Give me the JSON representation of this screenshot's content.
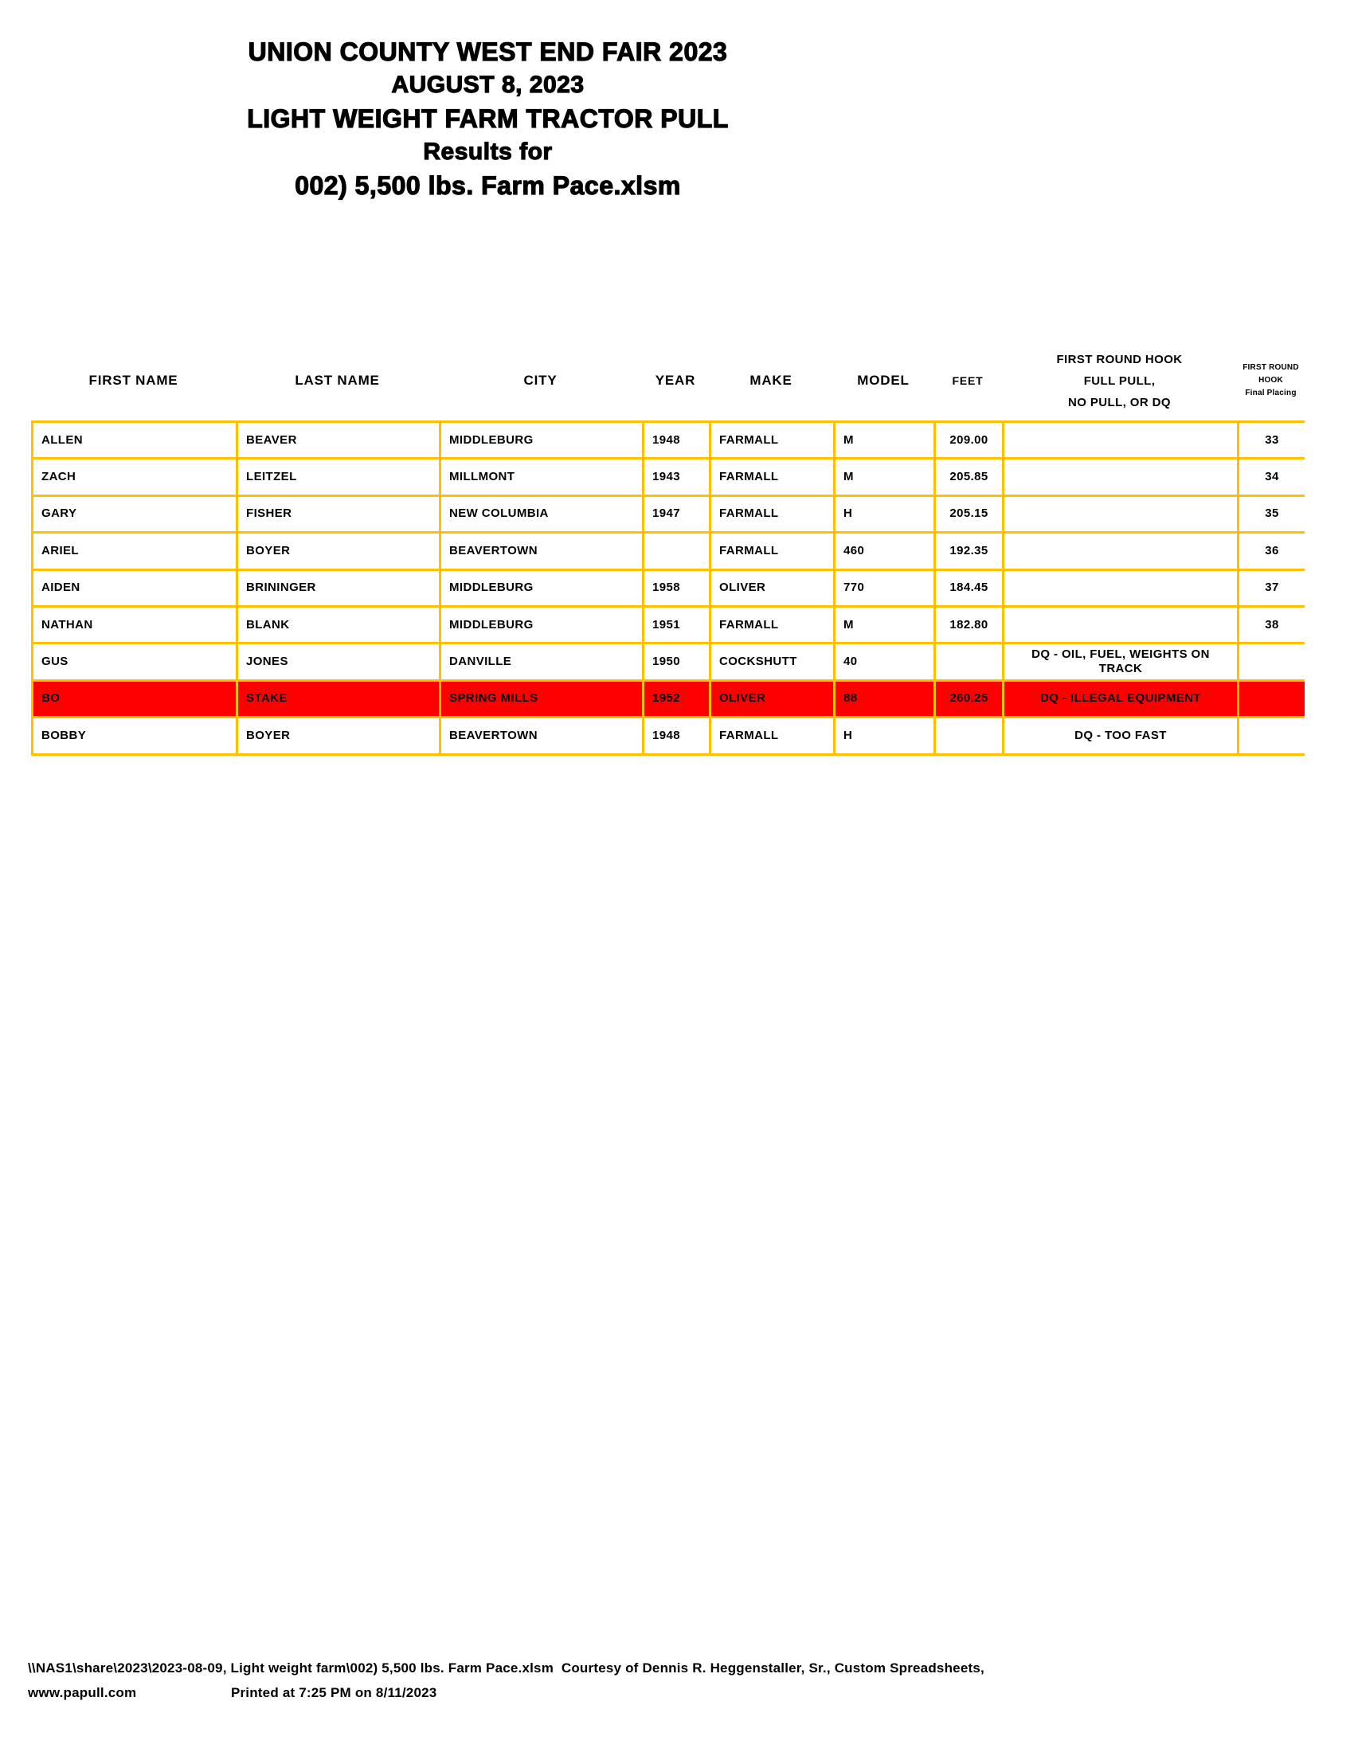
{
  "title": {
    "line1": "UNION COUNTY WEST END FAIR 2023",
    "line2": "AUGUST 8, 2023",
    "line3": "LIGHT WEIGHT FARM TRACTOR PULL",
    "line4": "Results for",
    "line5": "002) 5,500 lbs. Farm Pace.xlsm"
  },
  "table": {
    "headers": {
      "first_name": "FIRST NAME",
      "last_name": "LAST NAME",
      "city": "CITY",
      "year": "YEAR",
      "make": "MAKE",
      "model": "MODEL",
      "feet": "FEET",
      "hook_line1": "FIRST ROUND HOOK",
      "hook_line2": "FULL PULL,",
      "hook_line3": "NO PULL, OR DQ",
      "placing_line1": "FIRST ROUND",
      "placing_line2": "HOOK",
      "placing_line3": "Final Placing"
    },
    "rows": [
      {
        "first_name": "ALLEN",
        "last_name": "BEAVER",
        "city": "MIDDLEBURG",
        "year": "1948",
        "make": "FARMALL",
        "model": "M",
        "feet": "209.00",
        "hook": "",
        "placing": "33",
        "highlight": false
      },
      {
        "first_name": "ZACH",
        "last_name": "LEITZEL",
        "city": "MILLMONT",
        "year": "1943",
        "make": "FARMALL",
        "model": "M",
        "feet": "205.85",
        "hook": "",
        "placing": "34",
        "highlight": false
      },
      {
        "first_name": "GARY",
        "last_name": "FISHER",
        "city": "NEW COLUMBIA",
        "year": "1947",
        "make": "FARMALL",
        "model": "H",
        "feet": "205.15",
        "hook": "",
        "placing": "35",
        "highlight": false
      },
      {
        "first_name": "ARIEL",
        "last_name": "BOYER",
        "city": "BEAVERTOWN",
        "year": "",
        "make": "FARMALL",
        "model": "460",
        "feet": "192.35",
        "hook": "",
        "placing": "36",
        "highlight": false
      },
      {
        "first_name": "AIDEN",
        "last_name": "BRININGER",
        "city": "MIDDLEBURG",
        "year": "1958",
        "make": "OLIVER",
        "model": "770",
        "feet": "184.45",
        "hook": "",
        "placing": "37",
        "highlight": false
      },
      {
        "first_name": "NATHAN",
        "last_name": "BLANK",
        "city": "MIDDLEBURG",
        "year": "1951",
        "make": "FARMALL",
        "model": "M",
        "feet": "182.80",
        "hook": "",
        "placing": "38",
        "highlight": false
      },
      {
        "first_name": "GUS",
        "last_name": "JONES",
        "city": "DANVILLE",
        "year": "1950",
        "make": "COCKSHUTT",
        "model": "40",
        "feet": "",
        "hook": "DQ - OIL, FUEL, WEIGHTS ON TRACK",
        "placing": "",
        "highlight": false
      },
      {
        "first_name": "BO",
        "last_name": "STAKE",
        "city": "SPRING MILLS",
        "year": "1952",
        "make": "OLIVER",
        "model": "88",
        "feet": "260.25",
        "hook": "DQ - ILLEGAL EQUIPMENT",
        "placing": "",
        "highlight": true
      },
      {
        "first_name": "BOBBY",
        "last_name": "BOYER",
        "city": "BEAVERTOWN",
        "year": "1948",
        "make": "FARMALL",
        "model": "H",
        "feet": "",
        "hook": "DQ - TOO FAST",
        "placing": "",
        "highlight": false
      }
    ]
  },
  "footer": {
    "line1": "\\\\NAS1\\share\\2023\\2023-08-09, Light weight farm\\002) 5,500 lbs. Farm Pace.xlsm  Courtesy of Dennis R. Heggenstaller, Sr., Custom Spreadsheets,",
    "www": "www.papull.com",
    "printed": "Printed at 7:25 PM on 8/11/2023"
  },
  "colors": {
    "border": "#FFC000",
    "highlight_row": "#FF0000",
    "text": "#000000",
    "background": "#FFFFFF"
  }
}
